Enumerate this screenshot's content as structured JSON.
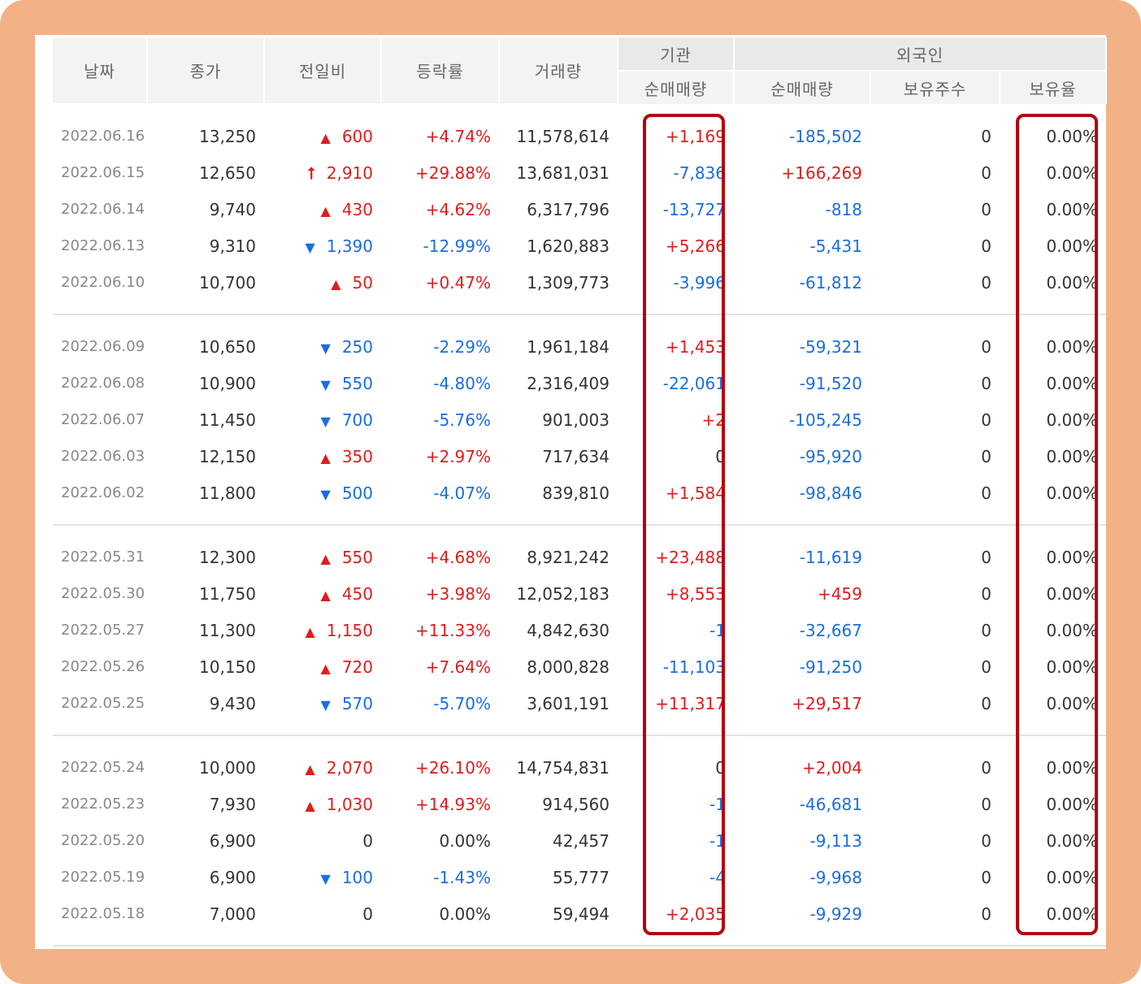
{
  "header": {
    "date": "날짜",
    "close": "종가",
    "change": "전일비",
    "rate": "등락률",
    "volume": "거래량",
    "institution": "기관",
    "inst_net": "순매매량",
    "foreign": "외국인",
    "foreign_net": "순매매량",
    "holdings": "보유주수",
    "holding_rate": "보유율"
  },
  "colors": {
    "up": "#e01c1c",
    "down": "#1a6de0",
    "highlight": "#b4000e",
    "frame": "#f2b285"
  },
  "groups": [
    {
      "rows": [
        {
          "date": "2022.06.16",
          "close": "13,250",
          "dir": "up",
          "change": "600",
          "rate": "+4.74%",
          "volume": "11,578,614",
          "inst": "+1,169",
          "foreign": "-185,502",
          "hold": "0",
          "hold_rate": "0.00%"
        },
        {
          "date": "2022.06.15",
          "close": "12,650",
          "dir": "limit",
          "change": "2,910",
          "rate": "+29.88%",
          "volume": "13,681,031",
          "inst": "-7,836",
          "foreign": "+166,269",
          "hold": "0",
          "hold_rate": "0.00%"
        },
        {
          "date": "2022.06.14",
          "close": "9,740",
          "dir": "up",
          "change": "430",
          "rate": "+4.62%",
          "volume": "6,317,796",
          "inst": "-13,727",
          "foreign": "-818",
          "hold": "0",
          "hold_rate": "0.00%"
        },
        {
          "date": "2022.06.13",
          "close": "9,310",
          "dir": "down",
          "change": "1,390",
          "rate": "-12.99%",
          "volume": "1,620,883",
          "inst": "+5,266",
          "foreign": "-5,431",
          "hold": "0",
          "hold_rate": "0.00%"
        },
        {
          "date": "2022.06.10",
          "close": "10,700",
          "dir": "up",
          "change": "50",
          "rate": "+0.47%",
          "volume": "1,309,773",
          "inst": "-3,996",
          "foreign": "-61,812",
          "hold": "0",
          "hold_rate": "0.00%"
        }
      ]
    },
    {
      "rows": [
        {
          "date": "2022.06.09",
          "close": "10,650",
          "dir": "down",
          "change": "250",
          "rate": "-2.29%",
          "volume": "1,961,184",
          "inst": "+1,453",
          "foreign": "-59,321",
          "hold": "0",
          "hold_rate": "0.00%"
        },
        {
          "date": "2022.06.08",
          "close": "10,900",
          "dir": "down",
          "change": "550",
          "rate": "-4.80%",
          "volume": "2,316,409",
          "inst": "-22,061",
          "foreign": "-91,520",
          "hold": "0",
          "hold_rate": "0.00%"
        },
        {
          "date": "2022.06.07",
          "close": "11,450",
          "dir": "down",
          "change": "700",
          "rate": "-5.76%",
          "volume": "901,003",
          "inst": "+2",
          "foreign": "-105,245",
          "hold": "0",
          "hold_rate": "0.00%"
        },
        {
          "date": "2022.06.03",
          "close": "12,150",
          "dir": "up",
          "change": "350",
          "rate": "+2.97%",
          "volume": "717,634",
          "inst": "0",
          "foreign": "-95,920",
          "hold": "0",
          "hold_rate": "0.00%"
        },
        {
          "date": "2022.06.02",
          "close": "11,800",
          "dir": "down",
          "change": "500",
          "rate": "-4.07%",
          "volume": "839,810",
          "inst": "+1,584",
          "foreign": "-98,846",
          "hold": "0",
          "hold_rate": "0.00%"
        }
      ]
    },
    {
      "rows": [
        {
          "date": "2022.05.31",
          "close": "12,300",
          "dir": "up",
          "change": "550",
          "rate": "+4.68%",
          "volume": "8,921,242",
          "inst": "+23,488",
          "foreign": "-11,619",
          "hold": "0",
          "hold_rate": "0.00%"
        },
        {
          "date": "2022.05.30",
          "close": "11,750",
          "dir": "up",
          "change": "450",
          "rate": "+3.98%",
          "volume": "12,052,183",
          "inst": "+8,553",
          "foreign": "+459",
          "hold": "0",
          "hold_rate": "0.00%"
        },
        {
          "date": "2022.05.27",
          "close": "11,300",
          "dir": "up",
          "change": "1,150",
          "rate": "+11.33%",
          "volume": "4,842,630",
          "inst": "-1",
          "foreign": "-32,667",
          "hold": "0",
          "hold_rate": "0.00%"
        },
        {
          "date": "2022.05.26",
          "close": "10,150",
          "dir": "up",
          "change": "720",
          "rate": "+7.64%",
          "volume": "8,000,828",
          "inst": "-11,103",
          "foreign": "-91,250",
          "hold": "0",
          "hold_rate": "0.00%"
        },
        {
          "date": "2022.05.25",
          "close": "9,430",
          "dir": "down",
          "change": "570",
          "rate": "-5.70%",
          "volume": "3,601,191",
          "inst": "+11,317",
          "foreign": "+29,517",
          "hold": "0",
          "hold_rate": "0.00%"
        }
      ]
    },
    {
      "rows": [
        {
          "date": "2022.05.24",
          "close": "10,000",
          "dir": "up",
          "change": "2,070",
          "rate": "+26.10%",
          "volume": "14,754,831",
          "inst": "0",
          "foreign": "+2,004",
          "hold": "0",
          "hold_rate": "0.00%"
        },
        {
          "date": "2022.05.23",
          "close": "7,930",
          "dir": "up",
          "change": "1,030",
          "rate": "+14.93%",
          "volume": "914,560",
          "inst": "-1",
          "foreign": "-46,681",
          "hold": "0",
          "hold_rate": "0.00%"
        },
        {
          "date": "2022.05.20",
          "close": "6,900",
          "dir": "none",
          "change": "0",
          "rate": "0.00%",
          "volume": "42,457",
          "inst": "-1",
          "foreign": "-9,113",
          "hold": "0",
          "hold_rate": "0.00%"
        },
        {
          "date": "2022.05.19",
          "close": "6,900",
          "dir": "down",
          "change": "100",
          "rate": "-1.43%",
          "volume": "55,777",
          "inst": "-4",
          "foreign": "-9,968",
          "hold": "0",
          "hold_rate": "0.00%"
        },
        {
          "date": "2022.05.18",
          "close": "7,000",
          "dir": "none",
          "change": "0",
          "rate": "0.00%",
          "volume": "59,494",
          "inst": "+2,035",
          "foreign": "-9,929",
          "hold": "0",
          "hold_rate": "0.00%"
        }
      ]
    }
  ]
}
